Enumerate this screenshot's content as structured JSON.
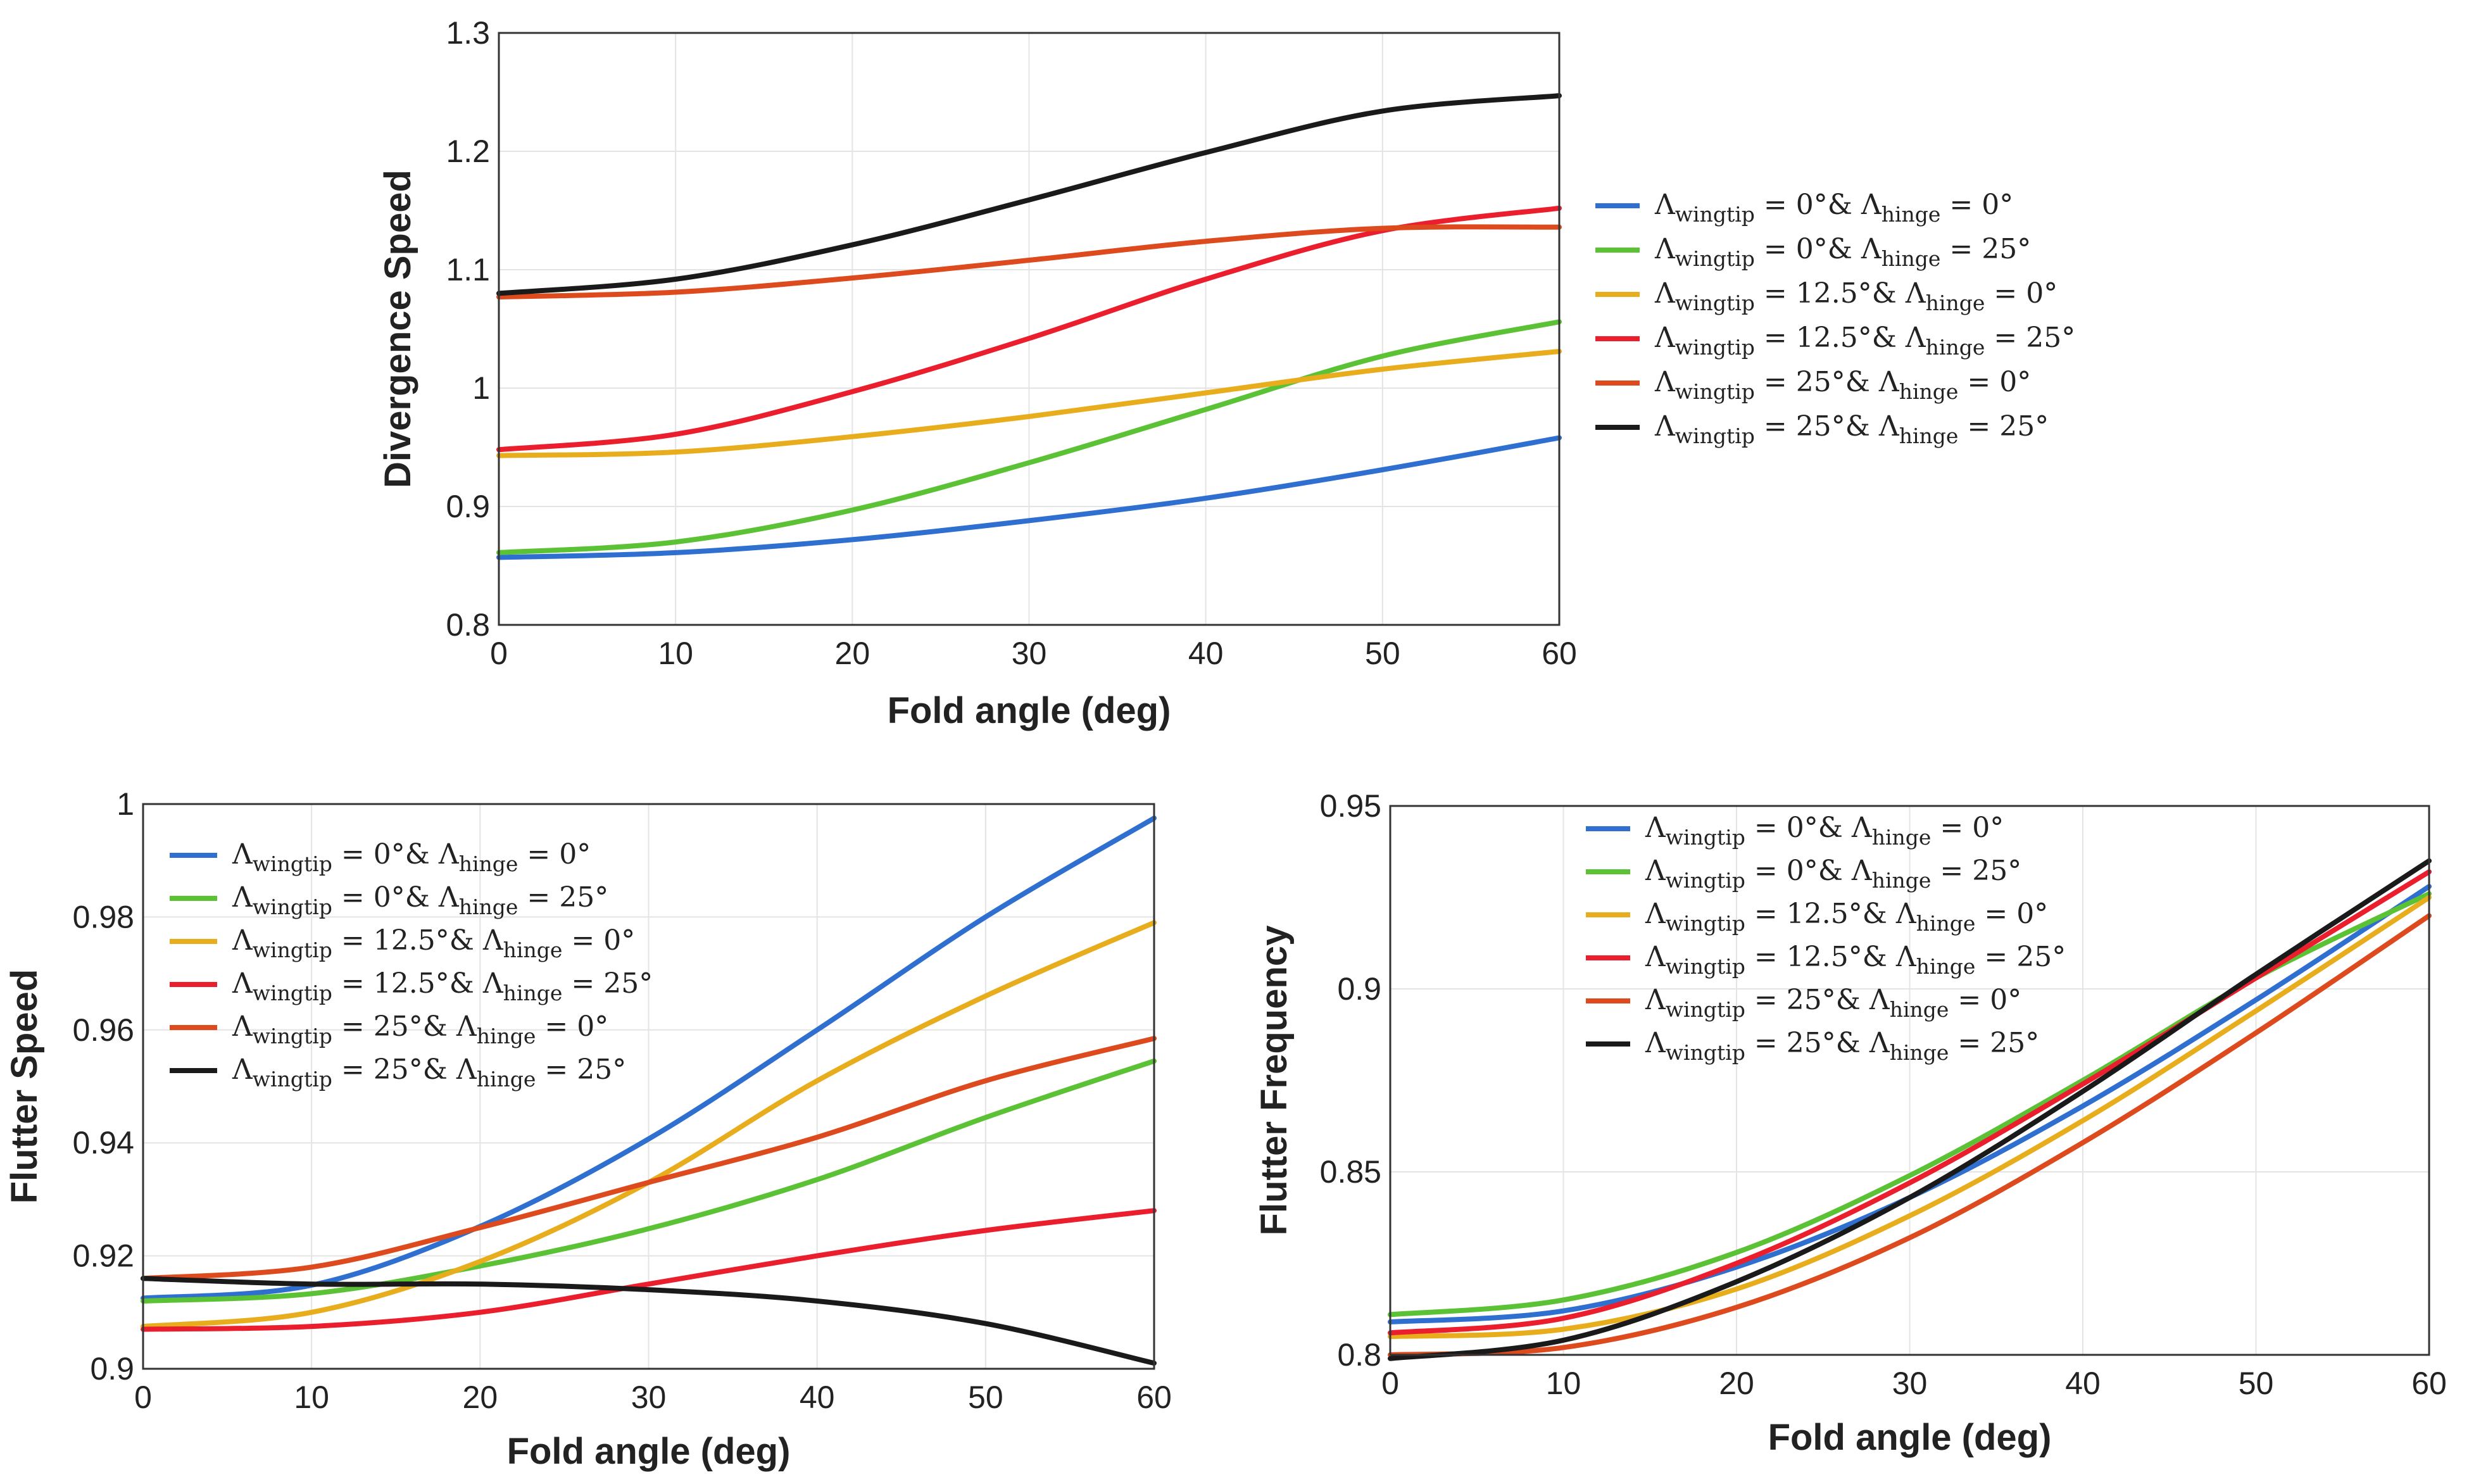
{
  "chart_data": [
    {
      "type": "line",
      "name": "divergence",
      "title": "",
      "xlabel": "Fold angle (deg)",
      "ylabel": "Divergence Speed",
      "xlim": [
        0,
        60
      ],
      "ylim": [
        0.8,
        1.3
      ],
      "xticks": [
        0,
        10,
        20,
        30,
        40,
        50,
        60
      ],
      "yticks": [
        0.8,
        0.9,
        1,
        1.1,
        1.2,
        1.3
      ],
      "ytick_labels": [
        "0.8",
        "0.9",
        "1",
        "1.1",
        "1.2",
        "1.3"
      ],
      "legend_position": "outside-right",
      "x": [
        0,
        10,
        20,
        30,
        40,
        50,
        60
      ],
      "series": [
        {
          "key": "s1",
          "values": [
            0.857,
            0.861,
            0.872,
            0.888,
            0.907,
            0.931,
            0.958
          ]
        },
        {
          "key": "s2",
          "values": [
            0.861,
            0.87,
            0.897,
            0.937,
            0.982,
            1.027,
            1.056
          ]
        },
        {
          "key": "s3",
          "values": [
            0.943,
            0.946,
            0.959,
            0.976,
            0.996,
            1.016,
            1.031
          ]
        },
        {
          "key": "s4",
          "values": [
            0.948,
            0.961,
            0.997,
            1.042,
            1.092,
            1.133,
            1.152
          ]
        },
        {
          "key": "s5",
          "values": [
            1.077,
            1.081,
            1.093,
            1.108,
            1.124,
            1.135,
            1.136
          ]
        },
        {
          "key": "s6",
          "values": [
            1.08,
            1.092,
            1.121,
            1.159,
            1.199,
            1.234,
            1.247
          ]
        }
      ]
    },
    {
      "type": "line",
      "name": "flutter-speed",
      "title": "",
      "xlabel": "Fold angle (deg)",
      "ylabel": "Flutter Speed",
      "xlim": [
        0,
        60
      ],
      "ylim": [
        0.9,
        1.0
      ],
      "xticks": [
        0,
        10,
        20,
        30,
        40,
        50,
        60
      ],
      "yticks": [
        0.9,
        0.92,
        0.94,
        0.96,
        0.98,
        1
      ],
      "ytick_labels": [
        "0.9",
        "0.92",
        "0.94",
        "0.96",
        "0.98",
        "1"
      ],
      "legend_position": "top-left",
      "x": [
        0,
        10,
        20,
        30,
        40,
        50,
        60
      ],
      "series": [
        {
          "key": "s1",
          "values": [
            0.9125,
            0.9148,
            0.9252,
            0.9407,
            0.96,
            0.98,
            0.9975
          ]
        },
        {
          "key": "s2",
          "values": [
            0.912,
            0.9133,
            0.9182,
            0.9248,
            0.9335,
            0.9445,
            0.9545
          ]
        },
        {
          "key": "s3",
          "values": [
            0.9075,
            0.91,
            0.919,
            0.933,
            0.951,
            0.966,
            0.979
          ]
        },
        {
          "key": "s4",
          "values": [
            0.907,
            0.9075,
            0.91,
            0.915,
            0.92,
            0.9245,
            0.928
          ]
        },
        {
          "key": "s5",
          "values": [
            0.916,
            0.918,
            0.925,
            0.933,
            0.941,
            0.951,
            0.9585
          ]
        },
        {
          "key": "s6",
          "values": [
            0.916,
            0.915,
            0.915,
            0.914,
            0.912,
            0.908,
            0.901
          ]
        }
      ]
    },
    {
      "type": "line",
      "name": "flutter-frequency",
      "title": "",
      "xlabel": "Fold angle (deg)",
      "ylabel": "Flutter Frequency",
      "xlim": [
        0,
        60
      ],
      "ylim": [
        0.8,
        0.95
      ],
      "xticks": [
        0,
        10,
        20,
        30,
        40,
        50,
        60
      ],
      "yticks": [
        0.8,
        0.85,
        0.9,
        0.95
      ],
      "ytick_labels": [
        "0.8",
        "0.85",
        "0.9",
        "0.95"
      ],
      "legend_position": "top-left",
      "x": [
        0,
        10,
        20,
        30,
        40,
        50,
        60
      ],
      "series": [
        {
          "key": "s1",
          "values": [
            0.809,
            0.812,
            0.824,
            0.843,
            0.868,
            0.897,
            0.928
          ]
        },
        {
          "key": "s2",
          "values": [
            0.811,
            0.815,
            0.828,
            0.849,
            0.875,
            0.903,
            0.926
          ]
        },
        {
          "key": "s3",
          "values": [
            0.805,
            0.807,
            0.818,
            0.838,
            0.864,
            0.894,
            0.925
          ]
        },
        {
          "key": "s4",
          "values": [
            0.806,
            0.81,
            0.825,
            0.847,
            0.874,
            0.903,
            0.932
          ]
        },
        {
          "key": "s5",
          "values": [
            0.8,
            0.802,
            0.813,
            0.832,
            0.858,
            0.888,
            0.92
          ]
        },
        {
          "key": "s6",
          "values": [
            0.799,
            0.804,
            0.82,
            0.843,
            0.872,
            0.904,
            0.935
          ]
        }
      ]
    }
  ],
  "legend_entries": [
    {
      "key": "s1",
      "color": "#2e6fd0",
      "wingtip": "0°",
      "hinge": "0°"
    },
    {
      "key": "s2",
      "color": "#5cc235",
      "wingtip": "0°",
      "hinge": "25°"
    },
    {
      "key": "s3",
      "color": "#e8ad1c",
      "wingtip": "12.5°",
      "hinge": "0°"
    },
    {
      "key": "s4",
      "color": "#ea1e2c",
      "wingtip": "12.5°",
      "hinge": "25°"
    },
    {
      "key": "s5",
      "color": "#dc4a1e",
      "wingtip": "25°",
      "hinge": "0°"
    },
    {
      "key": "s6",
      "color": "#1a1a1a",
      "wingtip": "25°",
      "hinge": "25°"
    }
  ],
  "legend_text": {
    "lambda": "Λ",
    "wingtip_sub": "wingtip",
    "hinge_sub": "hinge",
    "eq": " = ",
    "amp": "& "
  }
}
